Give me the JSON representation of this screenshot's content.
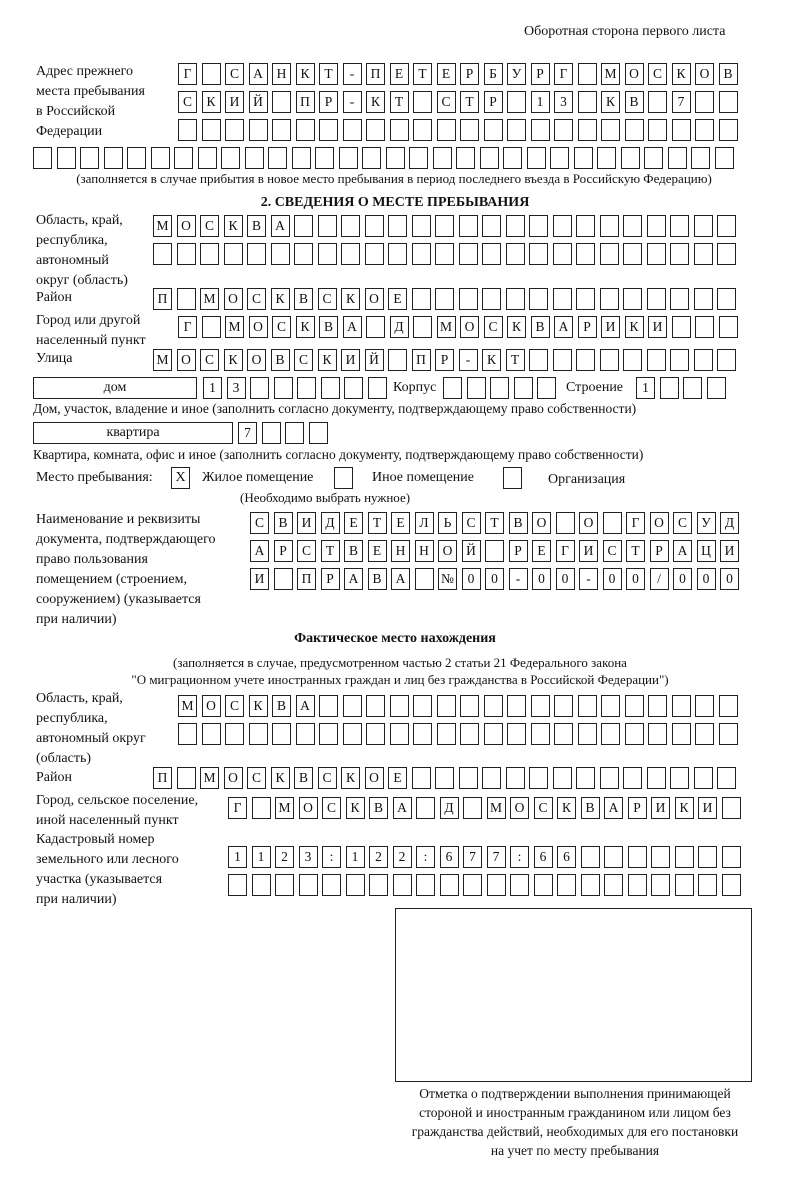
{
  "header": "Оборотная сторона первого листа",
  "prev_address": {
    "label": [
      "Адрес прежнего",
      "места пребывания",
      "в Российской",
      "Федерации"
    ],
    "rows": [
      [
        "Г",
        "",
        "С",
        "А",
        "Н",
        "К",
        "Т",
        "-",
        "П",
        "Е",
        "Т",
        "Е",
        "Р",
        "Б",
        "У",
        "Р",
        "Г",
        "",
        "М",
        "О",
        "С",
        "К",
        "О",
        "В"
      ],
      [
        "С",
        "К",
        "И",
        "Й",
        "",
        "П",
        "Р",
        "-",
        "К",
        "Т",
        "",
        "С",
        "Т",
        "Р",
        "",
        "1",
        "3",
        "",
        "К",
        "В",
        "",
        "7",
        "",
        ""
      ],
      [
        "",
        "",
        "",
        "",
        "",
        "",
        "",
        "",
        "",
        "",
        "",
        "",
        "",
        "",
        "",
        "",
        "",
        "",
        "",
        "",
        "",
        "",
        "",
        ""
      ],
      [
        "",
        "",
        "",
        "",
        "",
        "",
        "",
        "",
        "",
        "",
        "",
        "",
        "",
        "",
        "",
        "",
        "",
        "",
        "",
        "",
        "",
        "",
        "",
        "",
        "",
        "",
        "",
        "",
        "",
        ""
      ]
    ],
    "note": "(заполняется в случае прибытия в новое место пребывания в период последнего въезда в Российскую Федерацию)"
  },
  "section2": {
    "title": "2. СВЕДЕНИЯ О МЕСТЕ ПРЕБЫВАНИЯ",
    "region_label": [
      "Область, край,",
      "республика,",
      "автономный",
      "округ (область)"
    ],
    "region_rows": [
      [
        "М",
        "О",
        "С",
        "К",
        "В",
        "А",
        "",
        "",
        "",
        "",
        "",
        "",
        "",
        "",
        "",
        "",
        "",
        "",
        "",
        "",
        "",
        "",
        "",
        "",
        ""
      ],
      [
        "",
        "",
        "",
        "",
        "",
        "",
        "",
        "",
        "",
        "",
        "",
        "",
        "",
        "",
        "",
        "",
        "",
        "",
        "",
        "",
        "",
        "",
        "",
        "",
        ""
      ]
    ],
    "district_label": "Район",
    "district": [
      "П",
      "",
      "М",
      "О",
      "С",
      "К",
      "В",
      "С",
      "К",
      "О",
      "Е",
      "",
      "",
      "",
      "",
      "",
      "",
      "",
      "",
      "",
      "",
      "",
      "",
      "",
      ""
    ],
    "city_label": [
      "Город или другой",
      "населенный пункт"
    ],
    "city": [
      "Г",
      "",
      "М",
      "О",
      "С",
      "К",
      "В",
      "А",
      "",
      "Д",
      "",
      "М",
      "О",
      "С",
      "К",
      "В",
      "А",
      "Р",
      "И",
      "К",
      "И",
      "",
      "",
      ""
    ],
    "street_label": "Улица",
    "street": [
      "М",
      "О",
      "С",
      "К",
      "О",
      "В",
      "С",
      "К",
      "И",
      "Й",
      "",
      "П",
      "Р",
      "-",
      "К",
      "Т",
      "",
      "",
      "",
      "",
      "",
      "",
      "",
      "",
      ""
    ],
    "house_type": "дом",
    "house": [
      "1",
      "3",
      "",
      "",
      "",
      "",
      "",
      ""
    ],
    "korpus_label": "Корпус",
    "korpus": [
      "",
      "",
      "",
      "",
      ""
    ],
    "building_label": "Строение",
    "building": [
      "1",
      "",
      "",
      ""
    ],
    "house_note": "Дом, участок, владение и иное (заполнить согласно документу, подтверждающему право собственности)",
    "flat_type": "квартира",
    "flat": [
      "7",
      "",
      "",
      ""
    ],
    "flat_note": "Квартира, комната, офис и иное (заполнить согласно документу, подтверждающему право собственности)",
    "stay_label": "Место пребывания:",
    "stay_options": [
      {
        "label": "Жилое помещение",
        "mark": "X"
      },
      {
        "label": "Иное помещение",
        "mark": ""
      },
      {
        "label": "Организация",
        "mark": ""
      }
    ],
    "stay_note": "(Необходимо выбрать нужное)",
    "doc_label": [
      "Наименование и реквизиты",
      "документа, подтверждающего",
      "право пользования",
      "помещением (строением,",
      "сооружением) (указывается",
      "при наличии)"
    ],
    "doc_rows": [
      [
        "С",
        "В",
        "И",
        "Д",
        "Е",
        "Т",
        "Е",
        "Л",
        "Ь",
        "С",
        "Т",
        "В",
        "О",
        "",
        "О",
        "",
        "Г",
        "О",
        "С",
        "У",
        "Д"
      ],
      [
        "А",
        "Р",
        "С",
        "Т",
        "В",
        "Е",
        "Н",
        "Н",
        "О",
        "Й",
        "",
        "Р",
        "Е",
        "Г",
        "И",
        "С",
        "Т",
        "Р",
        "А",
        "Ц",
        "И"
      ],
      [
        "И",
        "",
        "П",
        "Р",
        "А",
        "В",
        "А",
        "",
        "№",
        "0",
        "0",
        "-",
        "0",
        "0",
        "-",
        "0",
        "0",
        "/",
        "0",
        "0",
        "0"
      ]
    ]
  },
  "actual": {
    "title": "Фактическое место нахождения",
    "note": [
      "(заполняется в случае, предусмотренном частью 2 статьи 21 Федерального закона",
      "\"О миграционном учете иностранных граждан и лиц без гражданства в Российской Федерации\")"
    ],
    "region_label": [
      "Область, край,",
      "республика,",
      "автономный округ",
      "(область)"
    ],
    "region_rows": [
      [
        "М",
        "О",
        "С",
        "К",
        "В",
        "А",
        "",
        "",
        "",
        "",
        "",
        "",
        "",
        "",
        "",
        "",
        "",
        "",
        "",
        "",
        "",
        "",
        "",
        ""
      ],
      [
        "",
        "",
        "",
        "",
        "",
        "",
        "",
        "",
        "",
        "",
        "",
        "",
        "",
        "",
        "",
        "",
        "",
        "",
        "",
        "",
        "",
        "",
        "",
        ""
      ]
    ],
    "district_label": "Район",
    "district": [
      "П",
      "",
      "М",
      "О",
      "С",
      "К",
      "В",
      "С",
      "К",
      "О",
      "Е",
      "",
      "",
      "",
      "",
      "",
      "",
      "",
      "",
      "",
      "",
      "",
      "",
      "",
      ""
    ],
    "city_label": [
      "Город, сельское поселение,",
      "иной населенный пункт"
    ],
    "city": [
      "Г",
      "",
      "М",
      "О",
      "С",
      "К",
      "В",
      "А",
      "",
      "Д",
      "",
      "М",
      "О",
      "С",
      "К",
      "В",
      "А",
      "Р",
      "И",
      "К",
      "И",
      ""
    ],
    "cadastral_label": [
      "Кадастровый номер",
      "земельного или лесного",
      "участка (указывается",
      "при наличии)"
    ],
    "cadastral_rows": [
      [
        "1",
        "1",
        "2",
        "3",
        ":",
        "1",
        "2",
        "2",
        ":",
        "6",
        "7",
        "7",
        ":",
        "6",
        "6",
        "",
        "",
        "",
        "",
        "",
        "",
        ""
      ],
      [
        "",
        "",
        "",
        "",
        "",
        "",
        "",
        "",
        "",
        "",
        "",
        "",
        "",
        "",
        "",
        "",
        "",
        "",
        "",
        "",
        "",
        ""
      ]
    ]
  },
  "stamp": {
    "caption": [
      "Отметка о подтверждении выполнения принимающей",
      "стороной и иностранным гражданином или лицом без",
      "гражданства действий, необходимых для его постановки",
      "на учет по месту пребывания"
    ]
  }
}
